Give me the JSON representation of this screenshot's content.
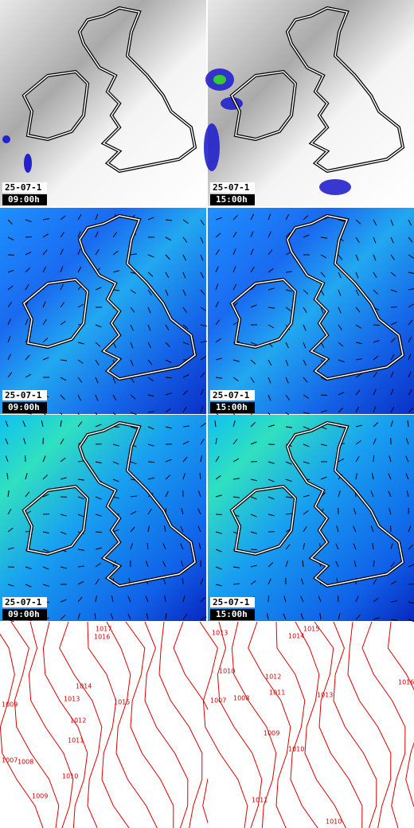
{
  "panels": [
    {
      "date": "25-07-1",
      "time": "09:00h"
    },
    {
      "date": "25-07-1",
      "time": "15:00h"
    },
    {
      "date": "25-07-1",
      "time": "09:00h"
    },
    {
      "date": "25-07-1",
      "time": "15:00h"
    },
    {
      "date": "25-07-1",
      "time": "09:00h"
    },
    {
      "date": "25-07-1",
      "time": "15:00h"
    }
  ],
  "isobars": [
    {
      "labels": [
        "1017",
        "1016",
        "1014",
        "1013",
        "1015",
        "1012",
        "1011",
        "1009",
        "1008",
        "1007",
        "1010",
        "1009"
      ]
    },
    {
      "labels": [
        "1015",
        "1014",
        "1013",
        "1010",
        "1012",
        "1016",
        "1011",
        "1008",
        "1007",
        "1013",
        "1009",
        "1010",
        "1011",
        "1010"
      ]
    }
  ]
}
